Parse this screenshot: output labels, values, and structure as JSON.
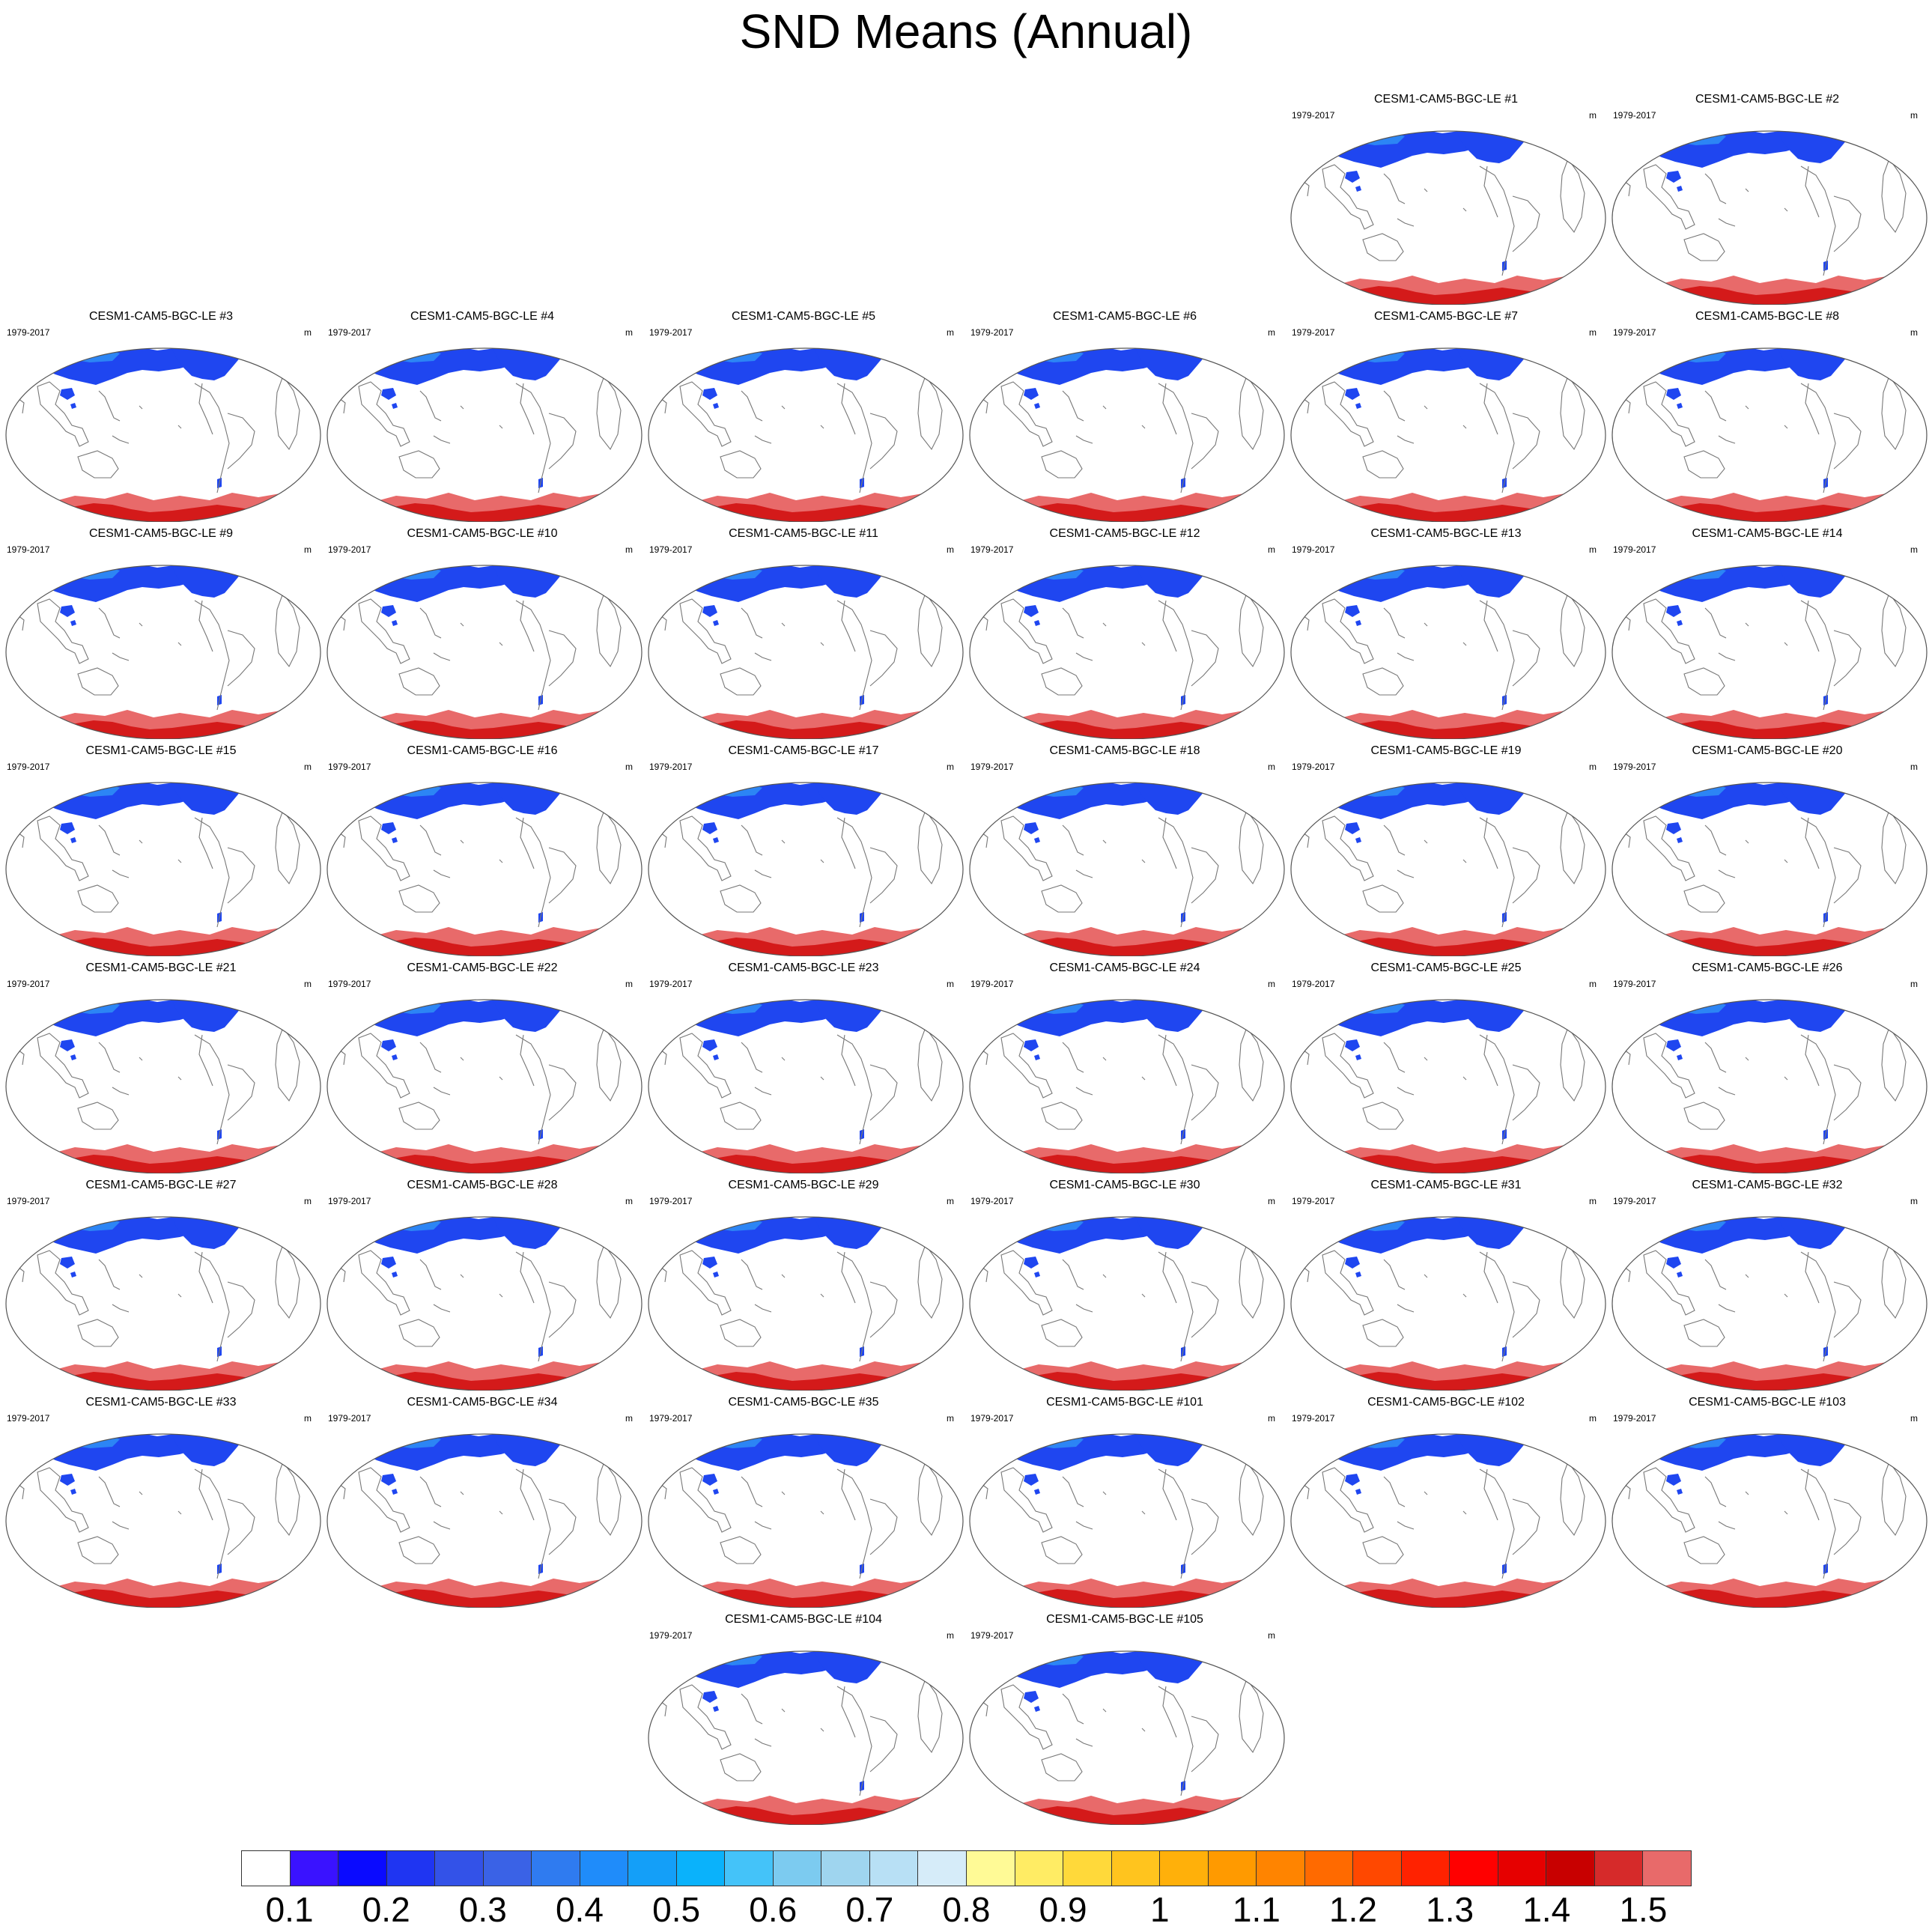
{
  "figure": {
    "title": "SND Means (Annual)",
    "panel_period": "1979-2017",
    "panel_units": "m",
    "panels": [
      {
        "title": "CESM1-CAM5-BGC-LE #1",
        "row": 0,
        "col": 4
      },
      {
        "title": "CESM1-CAM5-BGC-LE #2",
        "row": 0,
        "col": 5
      },
      {
        "title": "CESM1-CAM5-BGC-LE #3",
        "row": 1,
        "col": 0
      },
      {
        "title": "CESM1-CAM5-BGC-LE #4",
        "row": 1,
        "col": 1
      },
      {
        "title": "CESM1-CAM5-BGC-LE #5",
        "row": 1,
        "col": 2
      },
      {
        "title": "CESM1-CAM5-BGC-LE #6",
        "row": 1,
        "col": 3
      },
      {
        "title": "CESM1-CAM5-BGC-LE #7",
        "row": 1,
        "col": 4
      },
      {
        "title": "CESM1-CAM5-BGC-LE #8",
        "row": 1,
        "col": 5
      },
      {
        "title": "CESM1-CAM5-BGC-LE #9",
        "row": 2,
        "col": 0
      },
      {
        "title": "CESM1-CAM5-BGC-LE #10",
        "row": 2,
        "col": 1
      },
      {
        "title": "CESM1-CAM5-BGC-LE #11",
        "row": 2,
        "col": 2
      },
      {
        "title": "CESM1-CAM5-BGC-LE #12",
        "row": 2,
        "col": 3
      },
      {
        "title": "CESM1-CAM5-BGC-LE #13",
        "row": 2,
        "col": 4
      },
      {
        "title": "CESM1-CAM5-BGC-LE #14",
        "row": 2,
        "col": 5
      },
      {
        "title": "CESM1-CAM5-BGC-LE #15",
        "row": 3,
        "col": 0
      },
      {
        "title": "CESM1-CAM5-BGC-LE #16",
        "row": 3,
        "col": 1
      },
      {
        "title": "CESM1-CAM5-BGC-LE #17",
        "row": 3,
        "col": 2
      },
      {
        "title": "CESM1-CAM5-BGC-LE #18",
        "row": 3,
        "col": 3
      },
      {
        "title": "CESM1-CAM5-BGC-LE #19",
        "row": 3,
        "col": 4
      },
      {
        "title": "CESM1-CAM5-BGC-LE #20",
        "row": 3,
        "col": 5
      },
      {
        "title": "CESM1-CAM5-BGC-LE #21",
        "row": 4,
        "col": 0
      },
      {
        "title": "CESM1-CAM5-BGC-LE #22",
        "row": 4,
        "col": 1
      },
      {
        "title": "CESM1-CAM5-BGC-LE #23",
        "row": 4,
        "col": 2
      },
      {
        "title": "CESM1-CAM5-BGC-LE #24",
        "row": 4,
        "col": 3
      },
      {
        "title": "CESM1-CAM5-BGC-LE #25",
        "row": 4,
        "col": 4
      },
      {
        "title": "CESM1-CAM5-BGC-LE #26",
        "row": 4,
        "col": 5
      },
      {
        "title": "CESM1-CAM5-BGC-LE #27",
        "row": 5,
        "col": 0
      },
      {
        "title": "CESM1-CAM5-BGC-LE #28",
        "row": 5,
        "col": 1
      },
      {
        "title": "CESM1-CAM5-BGC-LE #29",
        "row": 5,
        "col": 2
      },
      {
        "title": "CESM1-CAM5-BGC-LE #30",
        "row": 5,
        "col": 3
      },
      {
        "title": "CESM1-CAM5-BGC-LE #31",
        "row": 5,
        "col": 4
      },
      {
        "title": "CESM1-CAM5-BGC-LE #32",
        "row": 5,
        "col": 5
      },
      {
        "title": "CESM1-CAM5-BGC-LE #33",
        "row": 6,
        "col": 0
      },
      {
        "title": "CESM1-CAM5-BGC-LE #34",
        "row": 6,
        "col": 1
      },
      {
        "title": "CESM1-CAM5-BGC-LE #35",
        "row": 6,
        "col": 2
      },
      {
        "title": "CESM1-CAM5-BGC-LE #101",
        "row": 6,
        "col": 3
      },
      {
        "title": "CESM1-CAM5-BGC-LE #102",
        "row": 6,
        "col": 4
      },
      {
        "title": "CESM1-CAM5-BGC-LE #103",
        "row": 6,
        "col": 5
      },
      {
        "title": "CESM1-CAM5-BGC-LE #104",
        "row": 7,
        "col": 2
      },
      {
        "title": "CESM1-CAM5-BGC-LE #105",
        "row": 7,
        "col": 3
      }
    ]
  },
  "colorbar": {
    "colors": [
      "#ffffff",
      "#3a12ff",
      "#0a0aff",
      "#1f35f2",
      "#3352e8",
      "#3a62e6",
      "#2f7bf0",
      "#1f8cfa",
      "#149ff8",
      "#0ab2fb",
      "#44c3f9",
      "#7ccbf0",
      "#9fd5ef",
      "#b8e0f5",
      "#d6ecf9",
      "#fffa96",
      "#ffec64",
      "#ffd93a",
      "#ffc41e",
      "#ffb00a",
      "#ff9a00",
      "#ff8400",
      "#ff6a00",
      "#ff4800",
      "#ff2200",
      "#ff0000",
      "#e60000",
      "#c80000",
      "#d62a2a",
      "#e86a6a"
    ],
    "labels": [
      "0.1",
      "0.2",
      "0.3",
      "0.4",
      "0.5",
      "0.6",
      "0.7",
      "0.8",
      "0.9",
      "1",
      "1.1",
      "1.2",
      "1.3",
      "1.4",
      "1.5"
    ],
    "label_box_positions": [
      1,
      3,
      5,
      7,
      9,
      11,
      13,
      15,
      17,
      19,
      21,
      23,
      25,
      27,
      29
    ]
  },
  "colors": {
    "coastline": "#777777",
    "frame": "#555555",
    "snow_low": "#1f46f0",
    "snow_mid": "#2e8cf5",
    "snow_high": "#e86a6a",
    "antarctic_deep": "#d41a1a"
  }
}
